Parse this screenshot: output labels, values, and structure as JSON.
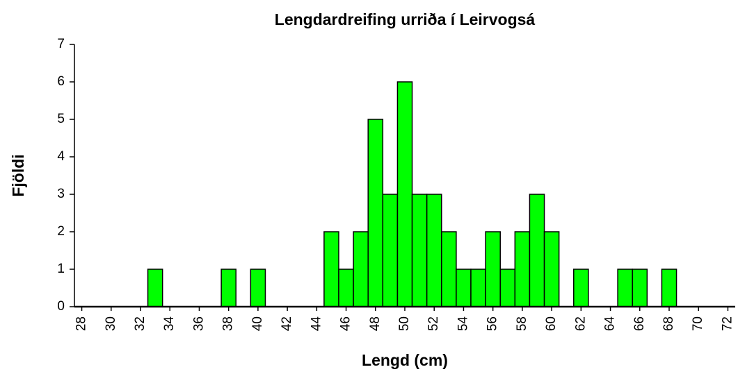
{
  "chart_data": {
    "type": "bar",
    "title": "Lengdardreifing urriða í Leirvogsá",
    "x_label": "Lengd (cm)",
    "y_label": "Fjöldi",
    "categories": [
      "28",
      null,
      "30",
      null,
      "32",
      null,
      "34",
      null,
      "36",
      null,
      "38",
      null,
      "40",
      null,
      "42",
      null,
      "44",
      null,
      "46",
      null,
      "48",
      null,
      "50",
      null,
      "52",
      null,
      "54",
      null,
      "56",
      null,
      "58",
      null,
      "60",
      null,
      "62",
      null,
      "64",
      null,
      "66",
      null,
      "68",
      null,
      "70",
      null,
      "72"
    ],
    "values": [
      0,
      0,
      0,
      0,
      0,
      1,
      0,
      0,
      0,
      0,
      1,
      0,
      1,
      0,
      0,
      0,
      0,
      2,
      1,
      2,
      5,
      3,
      6,
      3,
      3,
      2,
      1,
      1,
      2,
      1,
      2,
      3,
      2,
      0,
      1,
      0,
      0,
      1,
      1,
      0,
      1,
      0,
      0,
      0,
      0
    ],
    "color": "#00ff00",
    "ylim": [
      0,
      7
    ],
    "yticks": [
      0,
      1,
      2,
      3,
      4,
      5,
      6,
      7
    ],
    "grid": false
  }
}
